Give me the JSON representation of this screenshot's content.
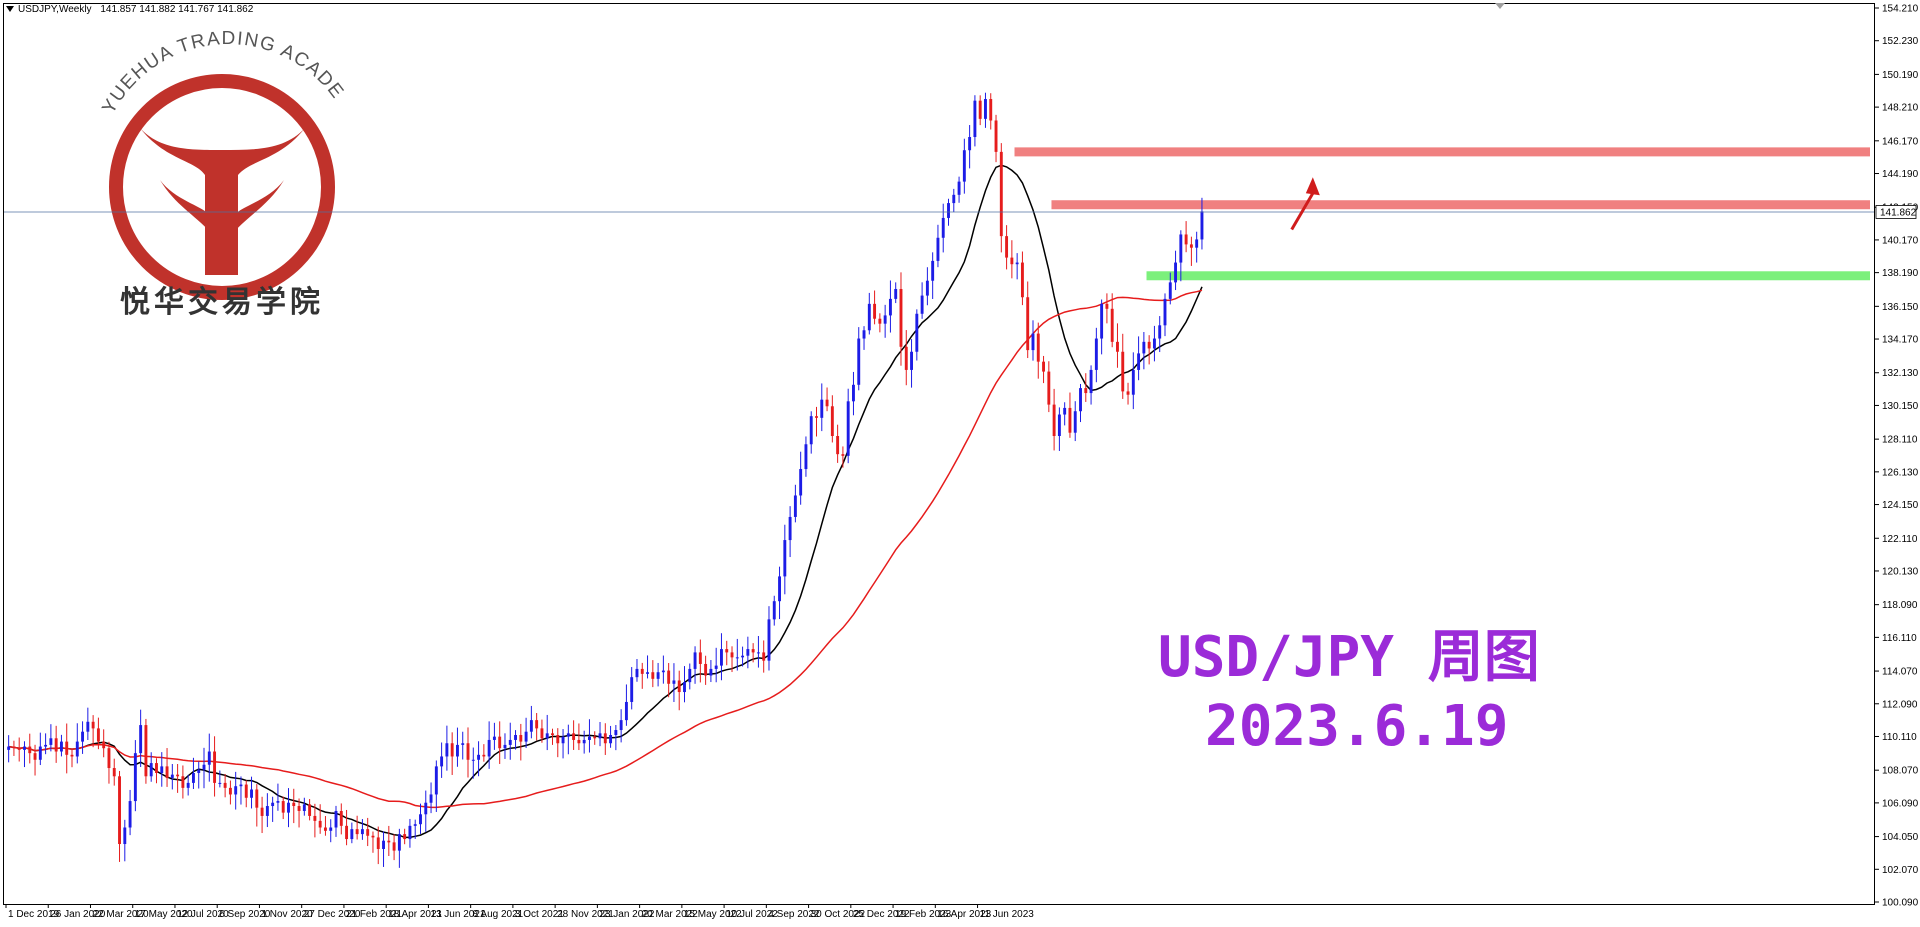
{
  "header": {
    "symbol": "USDJPY,Weekly",
    "ohlc": "141.857 141.882 141.767 141.862"
  },
  "logo": {
    "arc_text": "YUEHUA TRADING ACADEMY",
    "cn_text": "悦华交易学院"
  },
  "overlay": {
    "line1": "USD/JPY 周图",
    "line2": "2023.6.19"
  },
  "colors": {
    "bull": "#1c1ce6",
    "bear": "#e61c1c",
    "ma_fast": "#000000",
    "ma_slow": "#e61c1c",
    "resistance": "#f08080",
    "support": "#7cf07c",
    "arrow": "#d01c1c",
    "price_line": "#5070a0"
  },
  "chart_data": {
    "type": "candlestick",
    "symbol": "USDJPY",
    "timeframe": "Weekly",
    "ylim": [
      100.09,
      154.21
    ],
    "y_ticks": [
      "154.210",
      "152.230",
      "150.190",
      "148.210",
      "146.170",
      "144.190",
      "142.150",
      "140.170",
      "138.190",
      "136.150",
      "134.170",
      "132.130",
      "130.150",
      "128.110",
      "126.130",
      "124.150",
      "122.110",
      "120.130",
      "118.090",
      "116.110",
      "114.070",
      "112.090",
      "110.110",
      "108.070",
      "106.090",
      "104.050",
      "102.070",
      "100.090"
    ],
    "x_ticks": [
      "1 Dec 2019",
      "26 Jan 2020",
      "22 Mar 2020",
      "17 May 2020",
      "12 Jul 2020",
      "6 Sep 2020",
      "1 Nov 2020",
      "27 Dec 2020",
      "21 Feb 2021",
      "18 Apr 2021",
      "13 Jun 2021",
      "8 Aug 2021",
      "3 Oct 2021",
      "28 Nov 2021",
      "23 Jan 2022",
      "20 Mar 2022",
      "15 May 2022",
      "10 Jul 2022",
      "4 Sep 2022",
      "30 Oct 2022",
      "25 Dec 2022",
      "19 Feb 2023",
      "16 Apr 2023",
      "11 Jun 2023"
    ],
    "current_price": "141.862",
    "closes": [
      109.5,
      109.4,
      109.3,
      109.5,
      109.1,
      108.7,
      109.5,
      109.6,
      110.0,
      109.2,
      109.8,
      109.0,
      108.9,
      109.8,
      110.4,
      111.0,
      110.6,
      109.8,
      109.4,
      108.2,
      107.7,
      103.6,
      104.6,
      106.2,
      109.1,
      110.8,
      107.7,
      108.5,
      107.9,
      108.3,
      107.6,
      107.8,
      107.7,
      107.0,
      107.3,
      107.9,
      108.1,
      108.4,
      109.2,
      107.3,
      107.3,
      107.0,
      106.6,
      107.1,
      107.2,
      106.4,
      106.9,
      105.8,
      105.3,
      105.9,
      106.1,
      106.2,
      105.5,
      106.1,
      105.9,
      105.6,
      106.0,
      105.3,
      105.0,
      104.6,
      104.4,
      104.6,
      105.6,
      104.7,
      103.9,
      104.5,
      104.2,
      104.5,
      104.1,
      104.0,
      103.3,
      103.8,
      103.7,
      103.2,
      104.2,
      103.9,
      104.7,
      104.8,
      105.4,
      106.1,
      106.6,
      108.3,
      108.9,
      109.7,
      108.9,
      109.6,
      109.7,
      108.7,
      108.7,
      109.0,
      108.9,
      109.9,
      110.1,
      109.4,
      109.6,
      109.9,
      110.2,
      109.8,
      110.4,
      111.1,
      110.6,
      110.0,
      110.3,
      110.2,
      109.7,
      110.1,
      110.3,
      109.9,
      109.7,
      109.9,
      110.1,
      110.0,
      110.3,
      109.7,
      110.2,
      110.5,
      111.1,
      112.2,
      113.7,
      114.2,
      113.9,
      114.0,
      113.6,
      114.0,
      114.1,
      113.3,
      113.5,
      112.8,
      113.4,
      114.2,
      115.2,
      114.5,
      113.8,
      114.2,
      114.4,
      115.4,
      115.2,
      114.9,
      114.9,
      115.0,
      115.4,
      115.2,
      115.2,
      114.7,
      117.2,
      118.3,
      119.8,
      122.0,
      123.4,
      124.7,
      126.3,
      127.8,
      129.5,
      129.4,
      130.5,
      130.1,
      128.3,
      127.2,
      127.1,
      130.4,
      131.4,
      134.2,
      134.7,
      136.3,
      135.4,
      135.1,
      135.6,
      136.6,
      137.2,
      133.7,
      132.3,
      133.4,
      135.7,
      136.8,
      137.7,
      138.9,
      140.3,
      141.5,
      142.4,
      142.9,
      143.7,
      145.6,
      146.4,
      148.6,
      147.5,
      148.7,
      147.4,
      145.5,
      140.4,
      139.1,
      138.7,
      138.8,
      136.7,
      133.5,
      134.5,
      132.8,
      132.2,
      130.2,
      128.3,
      129.6,
      130.0,
      128.5,
      129.8,
      131.2,
      130.9,
      132.3,
      134.2,
      136.3,
      136.0,
      134.0,
      133.4,
      131.0,
      130.8,
      132.3,
      133.3,
      134.0,
      133.6,
      134.2,
      135.0,
      136.6,
      137.6,
      138.8,
      140.5,
      139.9,
      139.7,
      140.2,
      141.9
    ],
    "series": [
      {
        "kind": "sma_fast",
        "period": 13
      },
      {
        "kind": "sma_slow",
        "period": 52
      }
    ],
    "levels": [
      {
        "kind": "resistance",
        "y": 145.5,
        "x_start_index": 191
      },
      {
        "kind": "resistance",
        "y": 142.3,
        "x_start_index": 198
      },
      {
        "kind": "support",
        "y": 138.0,
        "x_start_index": 216
      }
    ],
    "arrow": {
      "from_index": 243,
      "from_price": 140.8,
      "to_index": 247,
      "to_price": 143.6
    },
    "grid": false,
    "legend": "none"
  }
}
